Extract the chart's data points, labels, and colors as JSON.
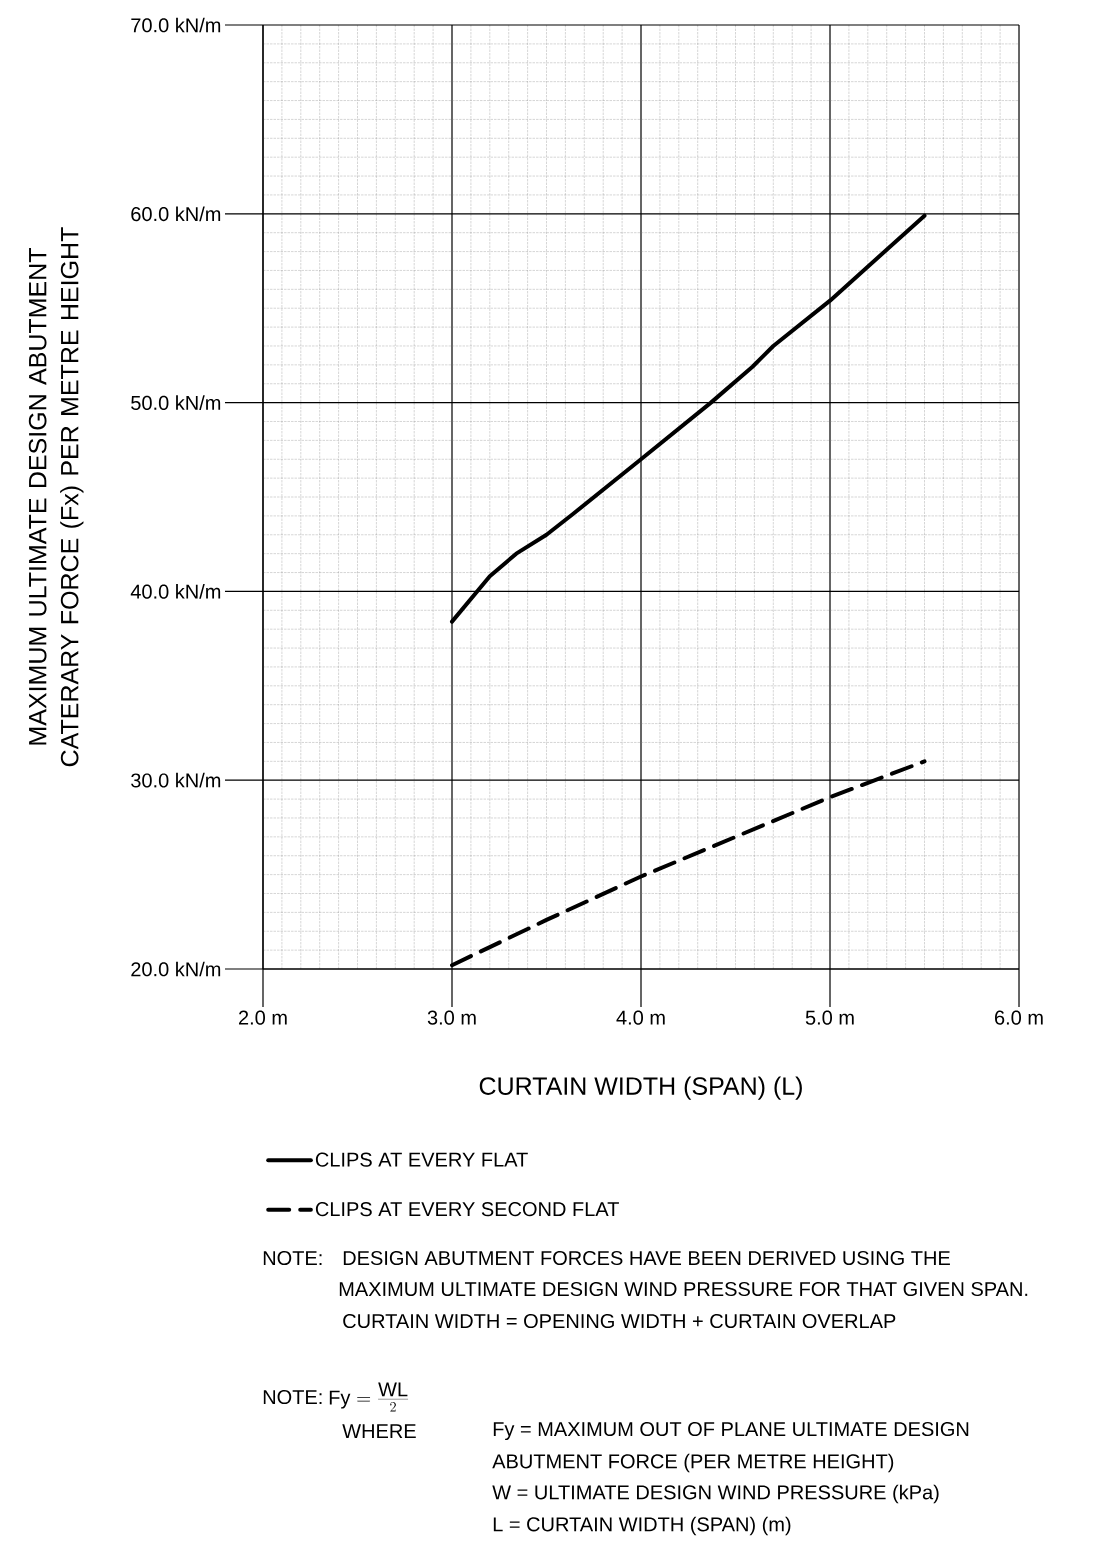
{
  "chart_data": {
    "type": "line",
    "xlabel": "CURTAIN WIDTH (SPAN) (L)",
    "ylabel": "MAXIMUM ULTIMATE DESIGN ABUTMENT CATERARY FORCE (Fx) PER METRE HEIGHT",
    "xlim": [
      2.0,
      6.0
    ],
    "ylim": [
      20,
      70
    ],
    "xticks": [
      {
        "value": 2.0,
        "label": "2.0 m"
      },
      {
        "value": 3.0,
        "label": "3.0 m"
      },
      {
        "value": 4.0,
        "label": "4.0 m"
      },
      {
        "value": 5.0,
        "label": "5.0 m"
      },
      {
        "value": 6.0,
        "label": "6.0 m"
      }
    ],
    "yticks": [
      {
        "value": 20,
        "label": "20.0 kN/m"
      },
      {
        "value": 30,
        "label": "30.0 kN/m"
      },
      {
        "value": 40,
        "label": "40.0 kN/m"
      },
      {
        "value": 50,
        "label": "50.0 kN/m"
      },
      {
        "value": 60,
        "label": "60.0 kN/m"
      },
      {
        "value": 70,
        "label": "70.0 kN/m"
      }
    ],
    "grid": true,
    "legend": "bottom",
    "marker": "none",
    "series": [
      {
        "name": "CLIPS AT EVERY FLAT",
        "color": "#000000",
        "line_style": "solid",
        "x": [
          3.0,
          3.2,
          3.34,
          3.5,
          3.64,
          4.0,
          4.37,
          4.59,
          4.7,
          5.0,
          5.5
        ],
        "values": [
          38.4,
          40.8,
          42.0,
          43.0,
          44.1,
          47.0,
          50.0,
          51.9,
          53.0,
          55.4,
          59.9
        ]
      },
      {
        "name": "CLIPS AT EVERY SECOND FLAT",
        "color": "#000000",
        "line_style": "dashed",
        "x": [
          3.0,
          3.5,
          4.0,
          4.5,
          5.0,
          5.5
        ],
        "values": [
          20.2,
          22.6,
          24.9,
          27.0,
          29.1,
          31.0
        ]
      }
    ],
    "annotations": [
      "NOTE:",
      "DESIGN ABUTMENT FORCES HAVE BEEN DERIVED USING THE",
      "MAXIMUM ULTIMATE DESIGN WIND PRESSURE FOR THAT GIVEN SPAN.",
      "CURTAIN WIDTH = OPENING WIDTH + CURTAIN OVERLAP",
      "NOTE:",
      "\\mbox{Fy} = \\frac{\\mbox{WL}}{2}",
      "WHERE",
      "Fy = MAXIMUM OUT OF PLANE ULTIMATE DESIGN",
      "ABUTMENT FORCE (PER METRE HEIGHT)",
      "W = ULTIMATE DESIGN WIND PRESSURE (kPa)",
      "L = CURTAIN WIDTH (SPAN) (m)"
    ]
  }
}
